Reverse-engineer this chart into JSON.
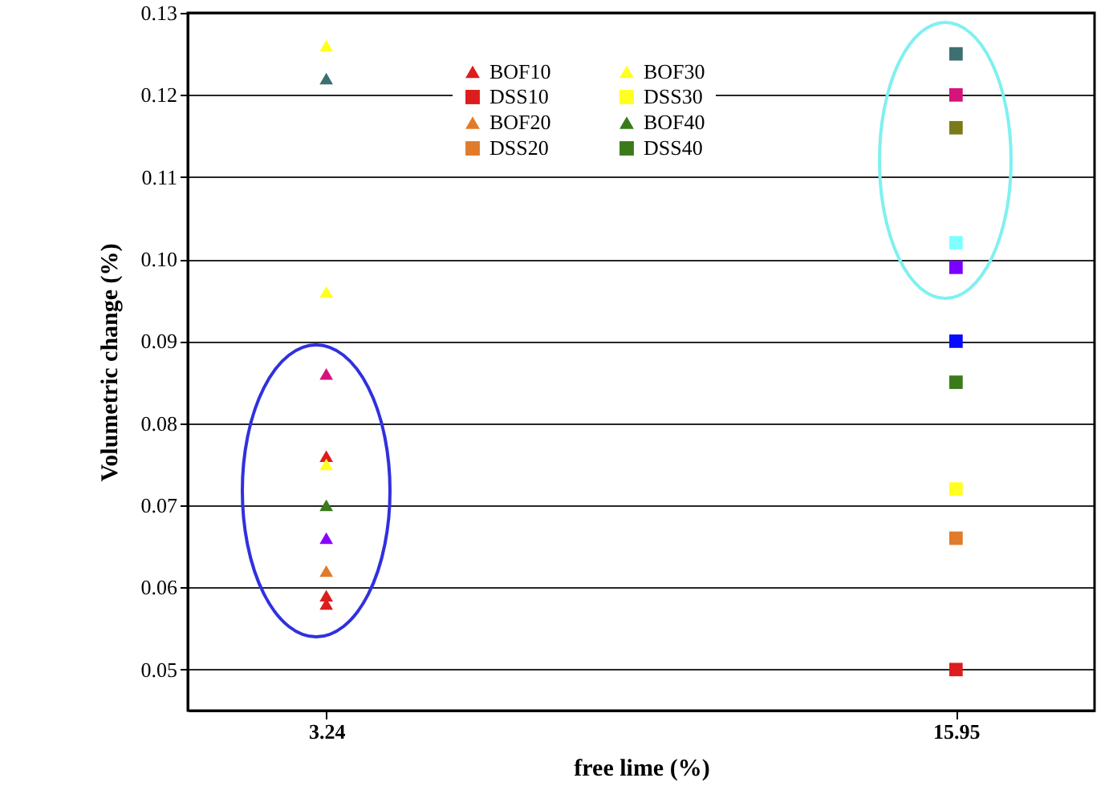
{
  "chart_data": {
    "type": "scatter",
    "xlabel": "free lime (%)",
    "ylabel": "Volumetric change (%)",
    "categories": [
      "3.24",
      "15.95"
    ],
    "ylim": [
      0.045,
      0.13
    ],
    "yticks": [
      0.05,
      0.06,
      0.07,
      0.08,
      0.09,
      {
        "value": 0.1,
        "label": "0.10"
      },
      0.11,
      0.12,
      0.13
    ],
    "grid": "y",
    "legend": "top",
    "series": [
      {
        "name": "BOF10",
        "color": "#dd1c1c",
        "marker": "triangle",
        "x": [
          "3.24"
        ],
        "values": [
          0.076
        ]
      },
      {
        "name": "DSS10",
        "color": "#dd1c1c",
        "marker": "square",
        "x": [
          "15.95"
        ],
        "values": [
          0.05
        ]
      },
      {
        "name": "BOF20",
        "color": "#e07b2a",
        "marker": "triangle",
        "x": [
          "3.24"
        ],
        "values": [
          0.062
        ]
      },
      {
        "name": "DSS20",
        "color": "#e07b2a",
        "marker": "square",
        "x": [
          "15.95"
        ],
        "values": [
          0.066
        ]
      },
      {
        "name": "BOF30",
        "color": "#ffff22",
        "marker": "triangle",
        "x": [
          "3.24"
        ],
        "values": [
          0.075
        ]
      },
      {
        "name": "DSS30",
        "color": "#ffff22",
        "marker": "square",
        "x": [
          "15.95"
        ],
        "values": [
          0.072
        ]
      },
      {
        "name": "BOF40",
        "color": "#3a7a1a",
        "marker": "triangle",
        "x": [
          "3.24"
        ],
        "values": [
          0.07
        ]
      },
      {
        "name": "DSS40",
        "color": "#3a7a1a",
        "marker": "square",
        "x": [
          "15.95"
        ],
        "values": [
          0.085
        ]
      },
      {
        "color": "#dd1c1c",
        "marker": "triangle",
        "x": [
          "3.24",
          "3.24"
        ],
        "values": [
          0.059,
          0.058
        ]
      },
      {
        "color": "#ffff22",
        "marker": "triangle",
        "x": [
          "3.24",
          "3.24"
        ],
        "values": [
          0.126,
          0.096
        ]
      },
      {
        "color": "#3d7070",
        "marker": "triangle",
        "x": [
          "3.24"
        ],
        "values": [
          0.122
        ]
      },
      {
        "color": "#d4147a",
        "marker": "triangle",
        "x": [
          "3.24"
        ],
        "values": [
          0.086
        ]
      },
      {
        "color": "#8a00ff",
        "marker": "triangle",
        "x": [
          "3.24"
        ],
        "values": [
          0.066
        ]
      },
      {
        "color": "#3d7070",
        "marker": "square",
        "x": [
          "15.95"
        ],
        "values": [
          0.125
        ]
      },
      {
        "color": "#d4147a",
        "marker": "square",
        "x": [
          "15.95"
        ],
        "values": [
          0.12
        ]
      },
      {
        "color": "#7a7a1a",
        "marker": "square",
        "x": [
          "15.95"
        ],
        "values": [
          0.116
        ]
      },
      {
        "color": "#80ffff",
        "marker": "square",
        "x": [
          "15.95"
        ],
        "values": [
          0.102
        ]
      },
      {
        "color": "#7a00ff",
        "marker": "square",
        "x": [
          "15.95"
        ],
        "values": [
          0.099
        ]
      },
      {
        "color": "#0a0aff",
        "marker": "square",
        "x": [
          "15.95"
        ],
        "values": [
          0.09
        ]
      }
    ]
  }
}
